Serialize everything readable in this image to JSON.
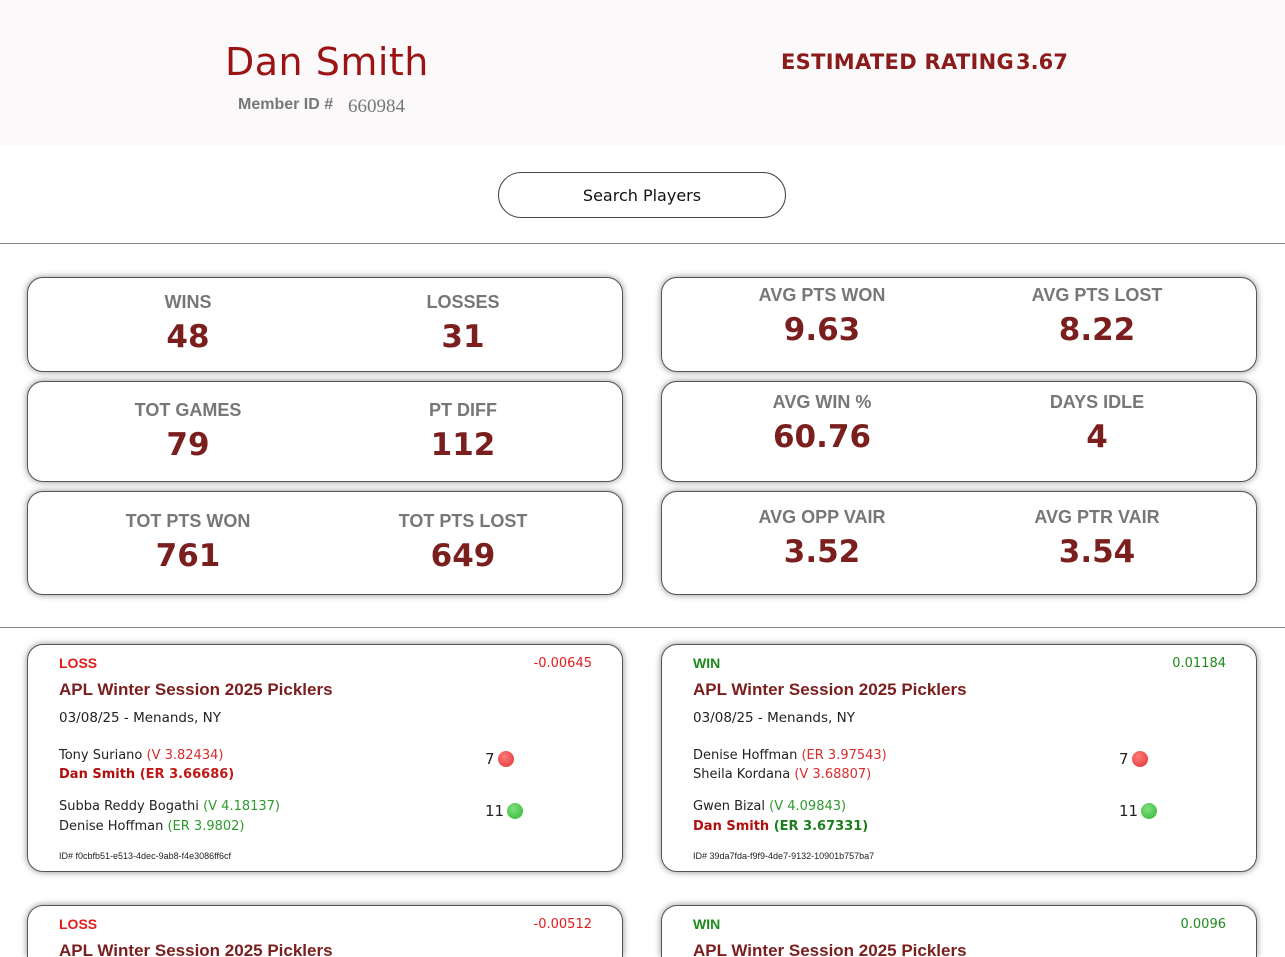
{
  "header": {
    "player_name": "Dan Smith",
    "member_label": "Member ID #",
    "member_id": "660984",
    "estimated_rating_label": "ESTIMATED RATING",
    "estimated_rating_value": "3.67"
  },
  "search": {
    "label": "Search Players"
  },
  "stats": {
    "wins": {
      "label": "WINS",
      "value": "48"
    },
    "losses": {
      "label": "LOSSES",
      "value": "31"
    },
    "tot_games": {
      "label": "TOT GAMES",
      "value": "79"
    },
    "pt_diff": {
      "label": "PT DIFF",
      "value": "112"
    },
    "tot_pts_won": {
      "label": "TOT PTS WON",
      "value": "761"
    },
    "tot_pts_lost": {
      "label": "TOT PTS LOST",
      "value": "649"
    },
    "avg_pts_won": {
      "label": "AVG  PTS WON",
      "value": "9.63"
    },
    "avg_pts_lost": {
      "label": "AVG  PTS LOST",
      "value": "8.22"
    },
    "avg_win_pct": {
      "label": "AVG WIN %",
      "value": "60.76"
    },
    "days_idle": {
      "label": "DAYS IDLE",
      "value": "4"
    },
    "avg_opp_vair": {
      "label": "AVG OPP VAIR",
      "value": "3.52"
    },
    "avg_ptr_vair": {
      "label": "AVG PTR VAIR",
      "value": "3.54"
    }
  },
  "colors": {
    "loss": "#e31b1b",
    "win": "#1e8a1e",
    "brand": "#8a1c1c",
    "score_loss_dot": "#e03131",
    "score_win_dot": "#2fb52f"
  },
  "games": [
    {
      "result": "LOSS",
      "delta": "-0.00645",
      "event": "APL Winter Session 2025 Picklers",
      "date_location": "03/08/25 - Menands, NY",
      "team1": {
        "p1_name": "Tony Suriano",
        "p1_rating": "(V 3.82434)",
        "p2_name": "Dan Smith",
        "p2_rating": "(ER 3.66686)"
      },
      "team1_score": "7",
      "team2": {
        "p1_name": "Subba Reddy Bogathi",
        "p1_rating": "(V 4.18137)",
        "p2_name": "Denise Hoffman",
        "p2_rating": "(ER 3.9802)"
      },
      "team2_score": "11",
      "game_id": "ID# f0cbfb51-e513-4dec-9ab8-f4e3086ff6cf"
    },
    {
      "result": "WIN",
      "delta": "0.01184",
      "event": "APL Winter Session 2025 Picklers",
      "date_location": "03/08/25 - Menands, NY",
      "team1": {
        "p1_name": "Denise Hoffman",
        "p1_rating": "(ER 3.97543)",
        "p2_name": "Sheila Kordana",
        "p2_rating": "(V 3.68807)"
      },
      "team1_score": "7",
      "team2": {
        "p1_name": "Gwen Bizal",
        "p1_rating": "(V 4.09843)",
        "p2_name": "Dan Smith",
        "p2_rating": "(ER 3.67331)"
      },
      "team2_score": "11",
      "game_id": "ID# 39da7fda-f9f9-4de7-9132-10901b757ba7"
    },
    {
      "result": "LOSS",
      "delta": "-0.00512",
      "event": "APL Winter Session 2025 Picklers"
    },
    {
      "result": "WIN",
      "delta": "0.0096",
      "event": "APL Winter Session 2025 Picklers"
    }
  ]
}
